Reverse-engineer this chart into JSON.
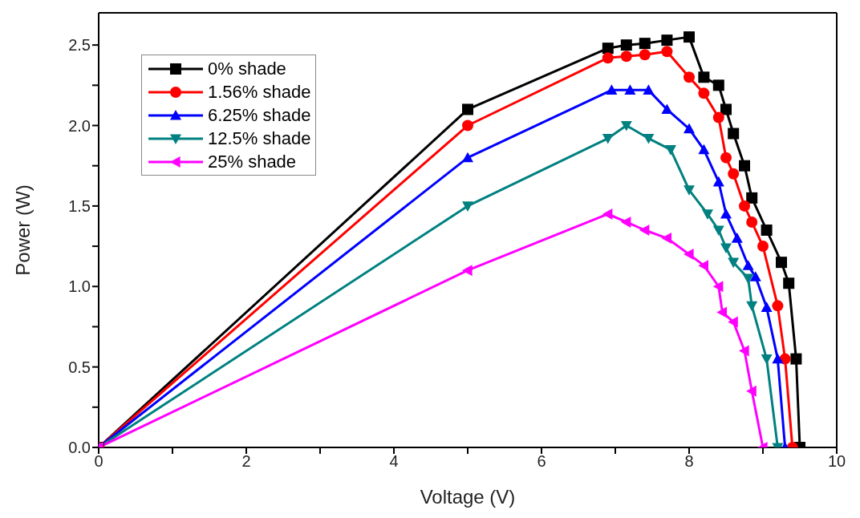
{
  "chart_data": {
    "type": "line",
    "xlabel": "Voltage (V)",
    "ylabel": "Power (W)",
    "xlim": [
      0,
      10
    ],
    "ylim": [
      0,
      2.7
    ],
    "xticks": [
      0,
      {
        "value": 1,
        "label": null
      },
      2,
      {
        "value": 3,
        "label": null
      },
      4,
      {
        "value": 5,
        "label": null
      },
      6,
      {
        "value": 7,
        "label": null
      },
      8,
      {
        "value": 9,
        "label": null
      },
      10
    ],
    "yticks": [
      {
        "value": 0,
        "label": "0.0"
      },
      {
        "value": 0.25,
        "label": null
      },
      {
        "value": 0.5,
        "label": "0.5"
      },
      {
        "value": 0.75,
        "label": null
      },
      {
        "value": 1,
        "label": "1.0"
      },
      {
        "value": 1.25,
        "label": null
      },
      {
        "value": 1.5,
        "label": "1.5"
      },
      {
        "value": 1.75,
        "label": null
      },
      {
        "value": 2,
        "label": "2.0"
      },
      {
        "value": 2.25,
        "label": null
      },
      {
        "value": 2.5,
        "label": "2.5"
      }
    ],
    "grid": false,
    "legend": "top left",
    "line_style": "solid",
    "series": [
      {
        "name": "0% shade",
        "color": "#000000",
        "marker": "square",
        "x": [
          0,
          5,
          6.9,
          7.15,
          7.4,
          7.7,
          8,
          8.2,
          8.4,
          8.5,
          8.6,
          8.75,
          8.85,
          9.05,
          9.25,
          9.35,
          9.45,
          9.5
        ],
        "values": [
          0,
          2.1,
          2.48,
          2.5,
          2.51,
          2.53,
          2.55,
          2.3,
          2.25,
          2.1,
          1.95,
          1.75,
          1.55,
          1.35,
          1.15,
          1.02,
          0.55,
          0
        ]
      },
      {
        "name": "1.56% shade",
        "color": "#ff0000",
        "marker": "circle",
        "x": [
          0,
          5,
          6.9,
          7.15,
          7.4,
          7.7,
          8,
          8.2,
          8.4,
          8.5,
          8.6,
          8.75,
          8.85,
          9,
          9.2,
          9.3,
          9.4
        ],
        "values": [
          0,
          2,
          2.42,
          2.43,
          2.44,
          2.46,
          2.3,
          2.2,
          2.05,
          1.8,
          1.7,
          1.5,
          1.4,
          1.25,
          0.88,
          0.55,
          0
        ]
      },
      {
        "name": "6.25% shade",
        "color": "#0000ff",
        "marker": "triangle",
        "x": [
          0,
          5,
          6.95,
          7.2,
          7.45,
          7.7,
          8,
          8.2,
          8.4,
          8.5,
          8.65,
          8.8,
          8.9,
          9.05,
          9.2,
          9.3
        ],
        "values": [
          0,
          1.8,
          2.22,
          2.22,
          2.22,
          2.1,
          1.98,
          1.85,
          1.65,
          1.45,
          1.3,
          1.13,
          1.06,
          0.87,
          0.55,
          0
        ]
      },
      {
        "name": "12.5% shade",
        "color": "#008080",
        "marker": "triangle-down",
        "x": [
          0,
          5,
          6.9,
          7.15,
          7.45,
          7.75,
          8,
          8.25,
          8.4,
          8.5,
          8.6,
          8.8,
          8.85,
          9.05,
          9.2
        ],
        "values": [
          0,
          1.5,
          1.92,
          2,
          1.92,
          1.85,
          1.6,
          1.45,
          1.35,
          1.24,
          1.15,
          1.05,
          0.88,
          0.55,
          0
        ]
      },
      {
        "name": "25% shade",
        "color": "#ff00ff",
        "marker": "triangle-left",
        "x": [
          0,
          5,
          6.9,
          7.15,
          7.4,
          7.7,
          8,
          8.2,
          8.4,
          8.45,
          8.6,
          8.75,
          8.85,
          9
        ],
        "values": [
          0,
          1.1,
          1.45,
          1.4,
          1.35,
          1.3,
          1.2,
          1.13,
          1,
          0.84,
          0.78,
          0.6,
          0.35,
          0
        ]
      }
    ]
  }
}
